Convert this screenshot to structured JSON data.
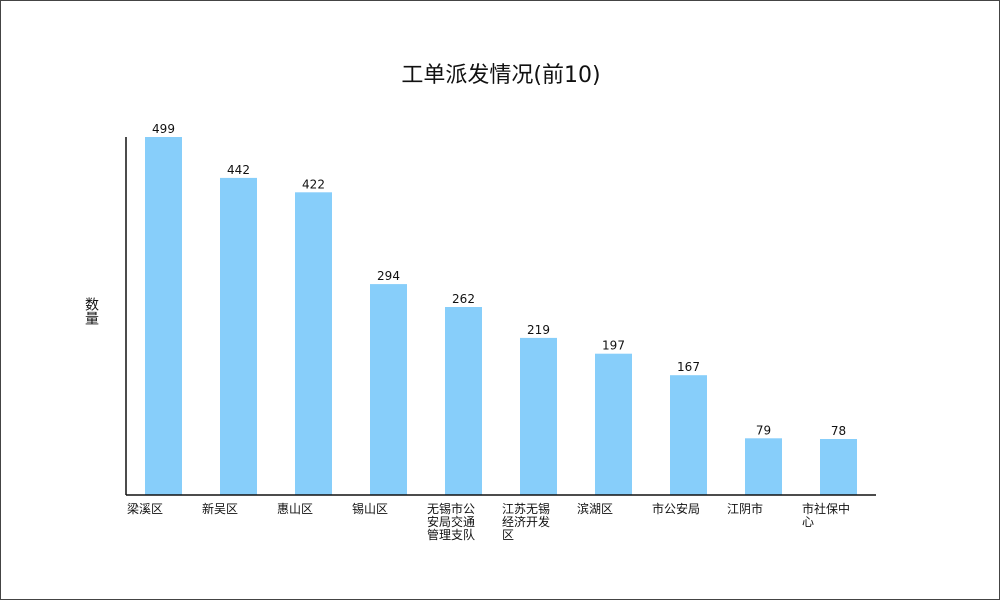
{
  "chart_data": {
    "type": "bar",
    "title": "工单派发情况(前10)",
    "xlabel": "",
    "ylabel": "数量",
    "ylim": [
      0,
      500
    ],
    "grid": false,
    "legend": "none",
    "bar_color": "#87CEFA",
    "categories": [
      [
        "梁溪区"
      ],
      [
        "新吴区"
      ],
      [
        "惠山区"
      ],
      [
        "锡山区"
      ],
      [
        "无锡市公",
        "安局交通",
        "管理支队"
      ],
      [
        "江苏无锡",
        "经济开发",
        "区"
      ],
      [
        "滨湖区"
      ],
      [
        "市公安局"
      ],
      [
        "江阴市"
      ],
      [
        "市社保中",
        "心"
      ]
    ],
    "values": [
      499,
      442,
      422,
      294,
      262,
      219,
      197,
      167,
      79,
      78
    ]
  }
}
